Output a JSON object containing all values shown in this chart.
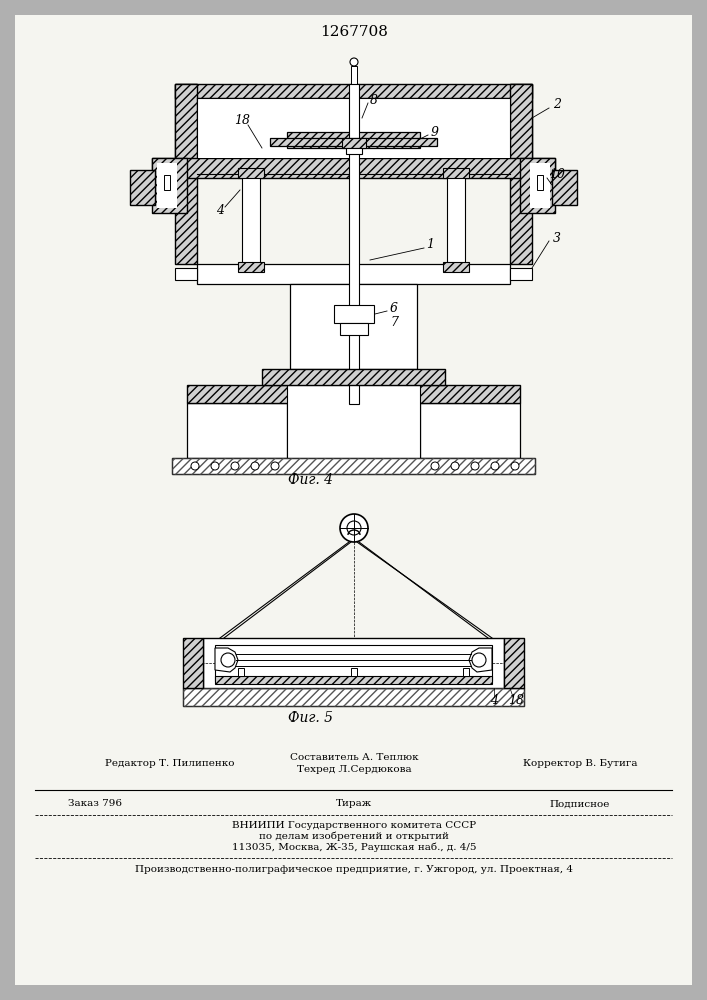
{
  "title": "1267708",
  "fig4_caption": "Фиг. 4",
  "fig5_caption": "Фиг. 5",
  "footer_line1_left": "Редактор Т. Пилипенко",
  "footer_line1_center_a": "Составитель А. Теплюк",
  "footer_line1_center_b": "Техред Л.Сердюкова",
  "footer_line1_right": "Корректор В. Бутига",
  "footer_line2_left": "Заказ 796",
  "footer_line2_center": "Тираж",
  "footer_line2_right": "Подписное",
  "footer_line3": "ВНИИПИ Государственного комитета СССР",
  "footer_line4": "по делам изобретений и открытий",
  "footer_line5": "113035, Москва, Ж-35, Раушская наб., д. 4/5",
  "footer_line6": "Производственно-полиграфическое предприятие, г. Ужгород, ул. Проектная, 4"
}
